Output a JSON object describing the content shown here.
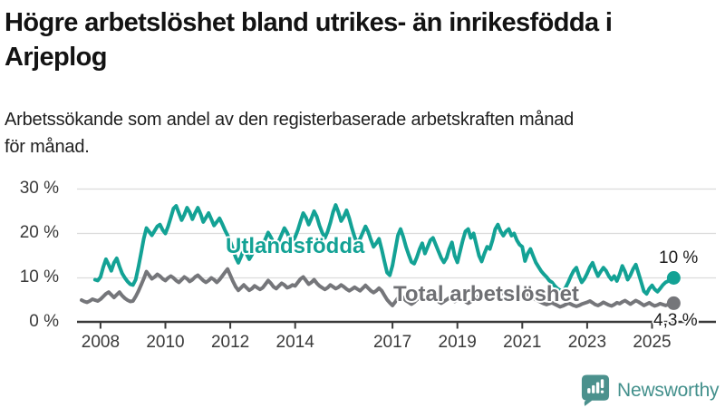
{
  "title": {
    "lines": [
      "Högre arbetslöshet bland utrikes- än inrikesfödda i",
      "Arjeplog"
    ],
    "full": "Högre arbetslöshet bland utrikes- än inrikesfödda i Arjeplog"
  },
  "subtitle": {
    "lines": [
      "Arbetssökande som andel av den registerbaserade arbetskraften månad",
      "för månad."
    ],
    "full": "Arbetssökande som andel av den registerbaserade arbetskraften månad för månad."
  },
  "branding": {
    "logo_text": "Newsworthy",
    "logo_icon": "bar-chart-speech-bubble-icon",
    "brand_color": "#4b918d"
  },
  "colors": {
    "series_foreign_born": "#13a295",
    "series_total": "#75767a",
    "axis": "#3a3a3a",
    "grid": "#dcdcdc",
    "text": "#1c1c1c"
  },
  "chart_data": {
    "type": "line",
    "unit": "%",
    "frequency": "monthly",
    "grid": "horizontal",
    "ylim": [
      0,
      30
    ],
    "ytick_labels": [
      "30 %",
      "20 %",
      "10 %",
      "0 %"
    ],
    "xticks": [
      "2008",
      "2010",
      "2012",
      "2014",
      "2017",
      "2019",
      "2021",
      "2023",
      "2025"
    ],
    "series": [
      {
        "name": "Utlandsfödda",
        "color": "#13a295",
        "end_label": "10 %",
        "end_value": 10.0,
        "start": "2007-11",
        "start_month_offset": -2,
        "values": [
          9.6,
          9.4,
          10.2,
          12.4,
          14.2,
          13.0,
          11.6,
          13.4,
          14.4,
          12.6,
          11.0,
          10.0,
          9.2,
          8.6,
          8.4,
          9.6,
          12.4,
          15.6,
          18.8,
          21.2,
          20.4,
          19.6,
          20.6,
          21.6,
          22.0,
          20.8,
          20.0,
          21.6,
          23.6,
          25.6,
          26.2,
          24.6,
          23.0,
          24.2,
          25.8,
          24.8,
          23.2,
          24.6,
          25.8,
          24.4,
          22.6,
          23.6,
          24.6,
          23.2,
          21.8,
          22.6,
          23.4,
          22.2,
          20.8,
          19.6,
          18.2,
          16.4,
          14.6,
          13.4,
          14.8,
          16.4,
          15.4,
          14.2,
          15.2,
          16.8,
          17.8,
          16.6,
          17.4,
          18.8,
          20.2,
          19.2,
          18.0,
          17.2,
          18.4,
          19.8,
          21.2,
          20.2,
          18.8,
          18.0,
          19.2,
          20.8,
          22.8,
          24.6,
          23.6,
          22.0,
          23.4,
          25.0,
          23.8,
          21.8,
          20.2,
          19.0,
          20.4,
          22.4,
          24.8,
          26.4,
          24.8,
          22.8,
          23.8,
          25.2,
          23.4,
          21.2,
          19.2,
          17.8,
          18.8,
          20.2,
          21.6,
          20.4,
          18.6,
          17.0,
          17.8,
          18.8,
          16.4,
          13.8,
          11.2,
          10.6,
          12.8,
          16.2,
          19.6,
          21.0,
          19.2,
          17.0,
          15.2,
          13.6,
          13.2,
          14.6,
          16.4,
          17.8,
          15.5,
          17.0,
          18.5,
          19.0,
          17.5,
          16.0,
          14.5,
          13.5,
          14.5,
          16.5,
          18.0,
          15.0,
          13.5,
          16.0,
          18.5,
          20.5,
          21.0,
          19.0,
          20.0,
          17.5,
          15.0,
          13.7,
          15.5,
          17.0,
          16.5,
          18.5,
          21.0,
          22.0,
          20.5,
          19.5,
          20.5,
          21.0,
          19.5,
          20.0,
          18.5,
          17.5,
          17.0,
          13.8,
          15.5,
          16.5,
          15.0,
          13.5,
          12.5,
          11.5,
          10.8,
          10.2,
          9.4,
          9.0,
          8.2,
          7.6,
          7.2,
          7.0,
          7.8,
          9.0,
          10.4,
          11.6,
          12.3,
          10.4,
          9.0,
          9.8,
          11.0,
          12.4,
          13.4,
          11.8,
          10.4,
          11.4,
          12.3,
          11.6,
          10.4,
          9.6,
          10.4,
          9.3,
          10.8,
          12.7,
          11.4,
          9.6,
          10.6,
          12.0,
          13.0,
          11.0,
          9.0,
          7.0,
          6.4,
          7.6,
          8.3,
          7.4,
          6.9,
          7.6,
          8.4,
          9.0,
          9.3,
          9.7,
          10.0
        ]
      },
      {
        "name": "Total arbetslöshet",
        "color": "#75767a",
        "end_label": "4,3 %",
        "end_value": 4.3,
        "start": "2007-06",
        "start_month_offset": -7,
        "values": [
          5.0,
          4.7,
          4.5,
          4.8,
          5.2,
          5.0,
          4.8,
          5.2,
          5.8,
          6.4,
          6.8,
          6.2,
          5.6,
          6.2,
          6.8,
          6.0,
          5.4,
          5.0,
          4.7,
          4.8,
          5.8,
          7.0,
          8.4,
          9.8,
          11.4,
          10.6,
          9.8,
          10.2,
          10.8,
          10.4,
          9.8,
          9.4,
          10.0,
          10.4,
          10.0,
          9.4,
          9.0,
          9.6,
          10.2,
          9.8,
          9.2,
          9.6,
          10.2,
          10.6,
          10.0,
          9.4,
          9.0,
          9.4,
          10.0,
          9.6,
          9.0,
          9.6,
          10.4,
          11.2,
          12.0,
          10.6,
          9.2,
          8.0,
          7.2,
          7.8,
          8.4,
          7.8,
          7.2,
          7.6,
          8.2,
          7.8,
          7.4,
          7.8,
          8.6,
          9.4,
          8.8,
          8.0,
          7.6,
          8.2,
          8.8,
          8.4,
          7.8,
          8.0,
          8.4,
          8.2,
          9.0,
          9.8,
          10.2,
          9.4,
          8.6,
          9.0,
          9.6,
          8.8,
          8.2,
          7.8,
          7.4,
          7.8,
          8.4,
          8.0,
          7.6,
          7.9,
          8.4,
          8.0,
          7.5,
          7.1,
          7.5,
          7.9,
          7.5,
          7.1,
          7.7,
          8.3,
          7.7,
          7.1,
          6.7,
          7.1,
          7.7,
          7.1,
          6.1,
          5.1,
          4.4,
          3.8,
          4.6,
          5.5,
          6.1,
          5.5,
          4.9,
          4.5,
          4.1,
          4.5,
          5.1,
          5.5,
          5.9,
          5.5,
          5.1,
          5.5,
          5.9,
          5.3,
          4.7,
          4.3,
          4.7,
          5.1,
          5.5,
          5.1,
          4.7,
          5.1,
          5.5,
          5.1,
          4.7,
          4.3,
          4.7,
          5.1,
          5.5,
          5.9,
          6.2,
          6.0,
          6.4,
          6.8,
          7.2,
          7.0,
          6.6,
          6.3,
          6.7,
          7.1,
          6.7,
          6.3,
          5.9,
          5.5,
          5.9,
          6.3,
          6.7,
          6.3,
          5.9,
          5.5,
          5.1,
          4.8,
          4.5,
          4.2,
          4.0,
          4.2,
          4.4,
          4.1,
          3.8,
          3.5,
          3.7,
          4.0,
          4.3,
          4.1,
          3.8,
          3.6,
          3.8,
          4.1,
          4.3,
          4.5,
          4.8,
          4.4,
          4.0,
          3.8,
          4.1,
          4.5,
          4.2,
          3.9,
          3.7,
          4.0,
          4.4,
          4.2,
          4.6,
          4.9,
          4.5,
          4.1,
          4.5,
          4.9,
          4.6,
          4.2,
          3.8,
          4.1,
          4.4,
          4.0,
          3.7,
          3.9,
          4.2,
          4.0,
          3.8,
          4.0,
          4.2,
          4.3
        ]
      }
    ]
  }
}
